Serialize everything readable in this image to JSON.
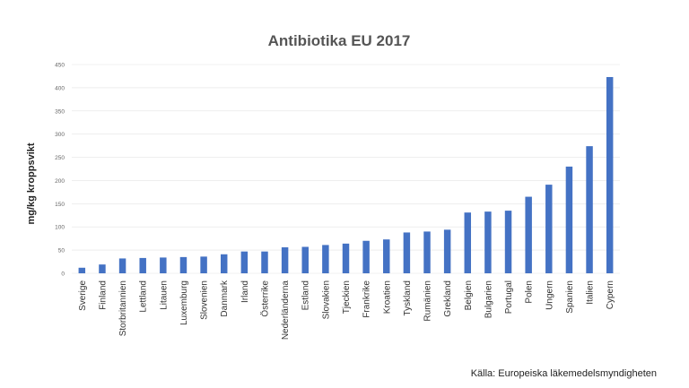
{
  "chart_data": {
    "type": "bar",
    "title": "Antibiotika EU 2017",
    "xlabel": "",
    "ylabel": "mg/kg kroppsvikt",
    "ylim": [
      0,
      450
    ],
    "yticks": [
      0,
      50,
      100,
      150,
      200,
      250,
      300,
      350,
      400,
      450
    ],
    "grid": true,
    "legend": "none",
    "bar_color": "#4472c4",
    "categories": [
      "Sverige",
      "Finland",
      "Storbritannien",
      "Lettland",
      "Litauen",
      "Luxemburg",
      "Slovenien",
      "Danmark",
      "Irland",
      "Österrike",
      "Nederländerna",
      "Estland",
      "Slovakien",
      "Tjeckien",
      "Frankrike",
      "Kroatien",
      "Tyskland",
      "Rumänien",
      "Grekland",
      "Belgien",
      "Bulgarien",
      "Portugal",
      "Polen",
      "Ungern",
      "Spanien",
      "Italien",
      "Cypern"
    ],
    "values": [
      12,
      19,
      32,
      33,
      34,
      35,
      36,
      41,
      47,
      47,
      56,
      57,
      61,
      64,
      70,
      73,
      88,
      90,
      94,
      131,
      133,
      135,
      165,
      191,
      230,
      274,
      423
    ],
    "source": "Källa: Europeiska läkemedelsmyndigheten"
  }
}
